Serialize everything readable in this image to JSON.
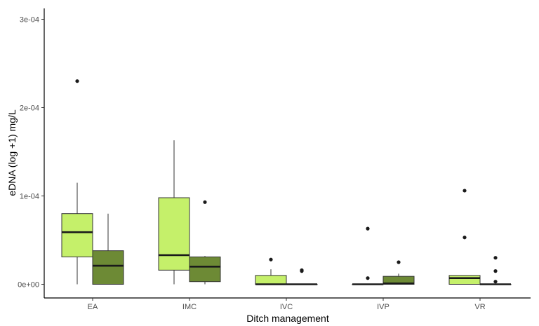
{
  "chart_data": {
    "type": "boxplot",
    "xlabel": "Ditch management",
    "ylabel": "eDNA  (log +1) mg/L",
    "categories": [
      "EA",
      "IMC",
      "IVC",
      "IVP",
      "VR"
    ],
    "ylim": [
      -1.5e-05,
      0.000305
    ],
    "yticks": [
      {
        "value": 0,
        "label": "0e+00"
      },
      {
        "value": 0.0001,
        "label": "1e-04"
      },
      {
        "value": 0.0002,
        "label": "2e-04"
      },
      {
        "value": 0.0003,
        "label": "3e-04"
      }
    ],
    "grid": false,
    "legend": "none",
    "series": [
      {
        "color": "#c5f06a",
        "boxes": [
          {
            "category": "EA",
            "min": 0.0,
            "q1": 3.1e-05,
            "median": 5.9e-05,
            "q3": 8e-05,
            "max": 0.000115,
            "outliers": [
              0.00023
            ]
          },
          {
            "category": "IMC",
            "min": 0.0,
            "q1": 1.6e-05,
            "median": 3.3e-05,
            "q3": 9.8e-05,
            "max": 0.000163,
            "outliers": []
          },
          {
            "category": "IVC",
            "min": 0.0,
            "q1": 0.0,
            "median": 0.0,
            "q3": 1e-05,
            "max": 1.7e-05,
            "outliers": [
              2.8e-05
            ]
          },
          {
            "category": "IVP",
            "min": 0.0,
            "q1": 0.0,
            "median": 0.0,
            "q3": 0.0,
            "max": 0.0,
            "outliers": [
              6.3e-05,
              7e-06
            ]
          },
          {
            "category": "VR",
            "min": 0.0,
            "q1": 0.0,
            "median": 7e-06,
            "q3": 1e-05,
            "max": 1e-05,
            "outliers": [
              0.000106,
              5.3e-05
            ]
          }
        ]
      },
      {
        "color": "#6d8a35",
        "boxes": [
          {
            "category": "EA",
            "min": 0.0,
            "q1": 0.0,
            "median": 2.1e-05,
            "q3": 3.8e-05,
            "max": 8e-05,
            "outliers": []
          },
          {
            "category": "IMC",
            "min": 0.0,
            "q1": 3e-06,
            "median": 2e-05,
            "q3": 3.1e-05,
            "max": 3.2e-05,
            "outliers": [
              9.3e-05
            ]
          },
          {
            "category": "IVC",
            "min": 0.0,
            "q1": 0.0,
            "median": 0.0,
            "q3": 0.0,
            "max": 0.0,
            "outliers": [
              1.6e-05,
              1.5e-05
            ]
          },
          {
            "category": "IVP",
            "min": 0.0,
            "q1": 0.0,
            "median": 1e-06,
            "q3": 9e-06,
            "max": 1.2e-05,
            "outliers": [
              2.5e-05
            ]
          },
          {
            "category": "VR",
            "min": 0.0,
            "q1": 0.0,
            "median": 0.0,
            "q3": 0.0,
            "max": 0.0,
            "outliers": [
              3e-05,
              1.5e-05,
              3e-06
            ]
          }
        ]
      }
    ]
  }
}
